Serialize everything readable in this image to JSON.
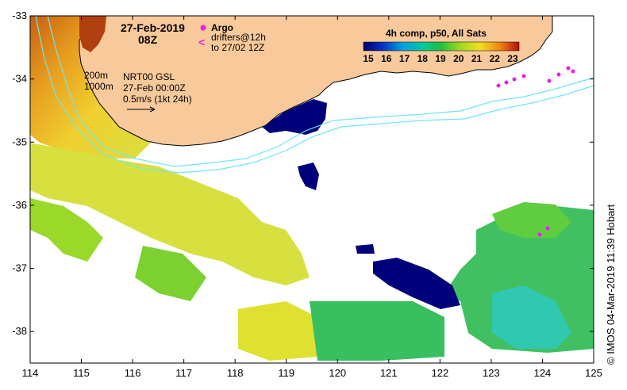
{
  "title": {
    "date": "27-Feb-2019",
    "time": "08Z"
  },
  "legend": {
    "argo_label": "Argo",
    "drifters_line1": "drifters@12h",
    "drifters_line2": "to 27/02 12Z",
    "drifter_symbol": "<",
    "colorbar_title": "4h comp, p50, All Sats",
    "colorbar_ticks": [
      "15",
      "16",
      "17",
      "18",
      "19",
      "20",
      "21",
      "22",
      "23"
    ]
  },
  "annotations": {
    "contour_200": "200m",
    "contour_1000": "1000m",
    "product": "NRT00 GSL",
    "product_time": "27-Feb 00:00Z",
    "scale_vector": "0.5m/s (1kt 24h)"
  },
  "credit": "© IMOS 04-Mar-2019 11:39 Hobart",
  "axes": {
    "x_ticks": [
      "114",
      "115",
      "116",
      "117",
      "118",
      "119",
      "120",
      "121",
      "122",
      "123",
      "124",
      "125"
    ],
    "y_ticks": [
      "-33",
      "-34",
      "-35",
      "-36",
      "-37",
      "-38"
    ],
    "lon_range": [
      114,
      125
    ],
    "lat_range": [
      -38.5,
      -33
    ]
  },
  "colors": {
    "land": "#f8c99a",
    "coast_line": "#000000",
    "sst_15": "#00007a",
    "sst_19": "#3fcf3f",
    "sst_20": "#8fdc2a",
    "sst_21": "#e8e030",
    "contour": "#6fe6f0",
    "argo": "#e81ee8"
  }
}
